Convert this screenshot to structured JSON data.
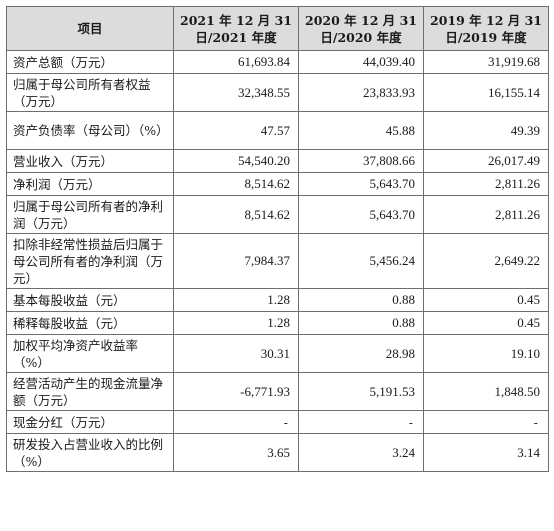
{
  "table": {
    "headers": [
      "项目",
      "2021 年 12 月 31 日/2021 年度",
      "2020 年 12 月 31 日/2020 年度",
      "2019 年 12 月 31 日/2019 年度"
    ],
    "rows": [
      {
        "label": "资产总额（万元）",
        "values": [
          "61,693.84",
          "44,039.40",
          "31,919.68"
        ]
      },
      {
        "label": "归属于母公司所有者权益（万元）",
        "values": [
          "32,348.55",
          "23,833.93",
          "16,155.14"
        ]
      },
      {
        "label": "资产负债率（母公司）（%）",
        "values": [
          "47.57",
          "45.88",
          "49.39"
        ]
      },
      {
        "label": "营业收入（万元）",
        "values": [
          "54,540.20",
          "37,808.66",
          "26,017.49"
        ]
      },
      {
        "label": "净利润（万元）",
        "values": [
          "8,514.62",
          "5,643.70",
          "2,811.26"
        ]
      },
      {
        "label": "归属于母公司所有者的净利润（万元）",
        "values": [
          "8,514.62",
          "5,643.70",
          "2,811.26"
        ]
      },
      {
        "label": "扣除非经常性损益后归属于母公司所有者的净利润（万元）",
        "values": [
          "7,984.37",
          "5,456.24",
          "2,649.22"
        ]
      },
      {
        "label": "基本每股收益（元）",
        "values": [
          "1.28",
          "0.88",
          "0.45"
        ]
      },
      {
        "label": "稀释每股收益（元）",
        "values": [
          "1.28",
          "0.88",
          "0.45"
        ]
      },
      {
        "label": "加权平均净资产收益率（%）",
        "values": [
          "30.31",
          "28.98",
          "19.10"
        ]
      },
      {
        "label": "经营活动产生的现金流量净额（万元）",
        "values": [
          "-6,771.93",
          "5,191.53",
          "1,848.50"
        ]
      },
      {
        "label": "现金分红（万元）",
        "values": [
          "-",
          "-",
          "-"
        ]
      },
      {
        "label": "研发投入占营业收入的比例（%）",
        "values": [
          "3.65",
          "3.24",
          "3.14"
        ]
      }
    ]
  }
}
